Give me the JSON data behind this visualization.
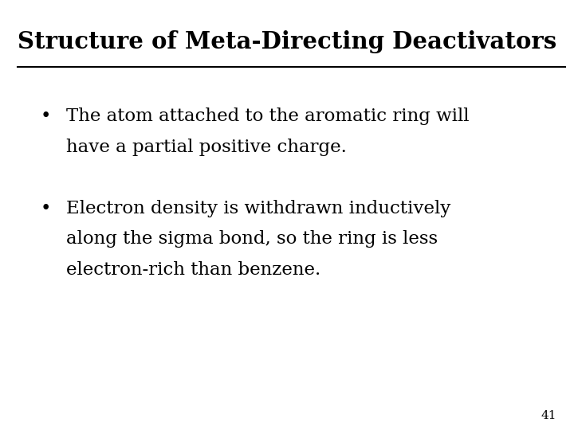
{
  "title": "Structure of Meta-Directing Deactivators",
  "bullet1_line1": "The atom attached to the aromatic ring will",
  "bullet1_line2": "have a partial positive charge.",
  "bullet2_line1": "Electron density is withdrawn inductively",
  "bullet2_line2": "along the sigma bond, so the ring is less",
  "bullet2_line3": "electron-rich than benzene.",
  "slide_number": "41",
  "background_color": "#ffffff",
  "text_color": "#000000",
  "title_fontsize": 21,
  "body_fontsize": 16.5,
  "slide_number_fontsize": 11
}
